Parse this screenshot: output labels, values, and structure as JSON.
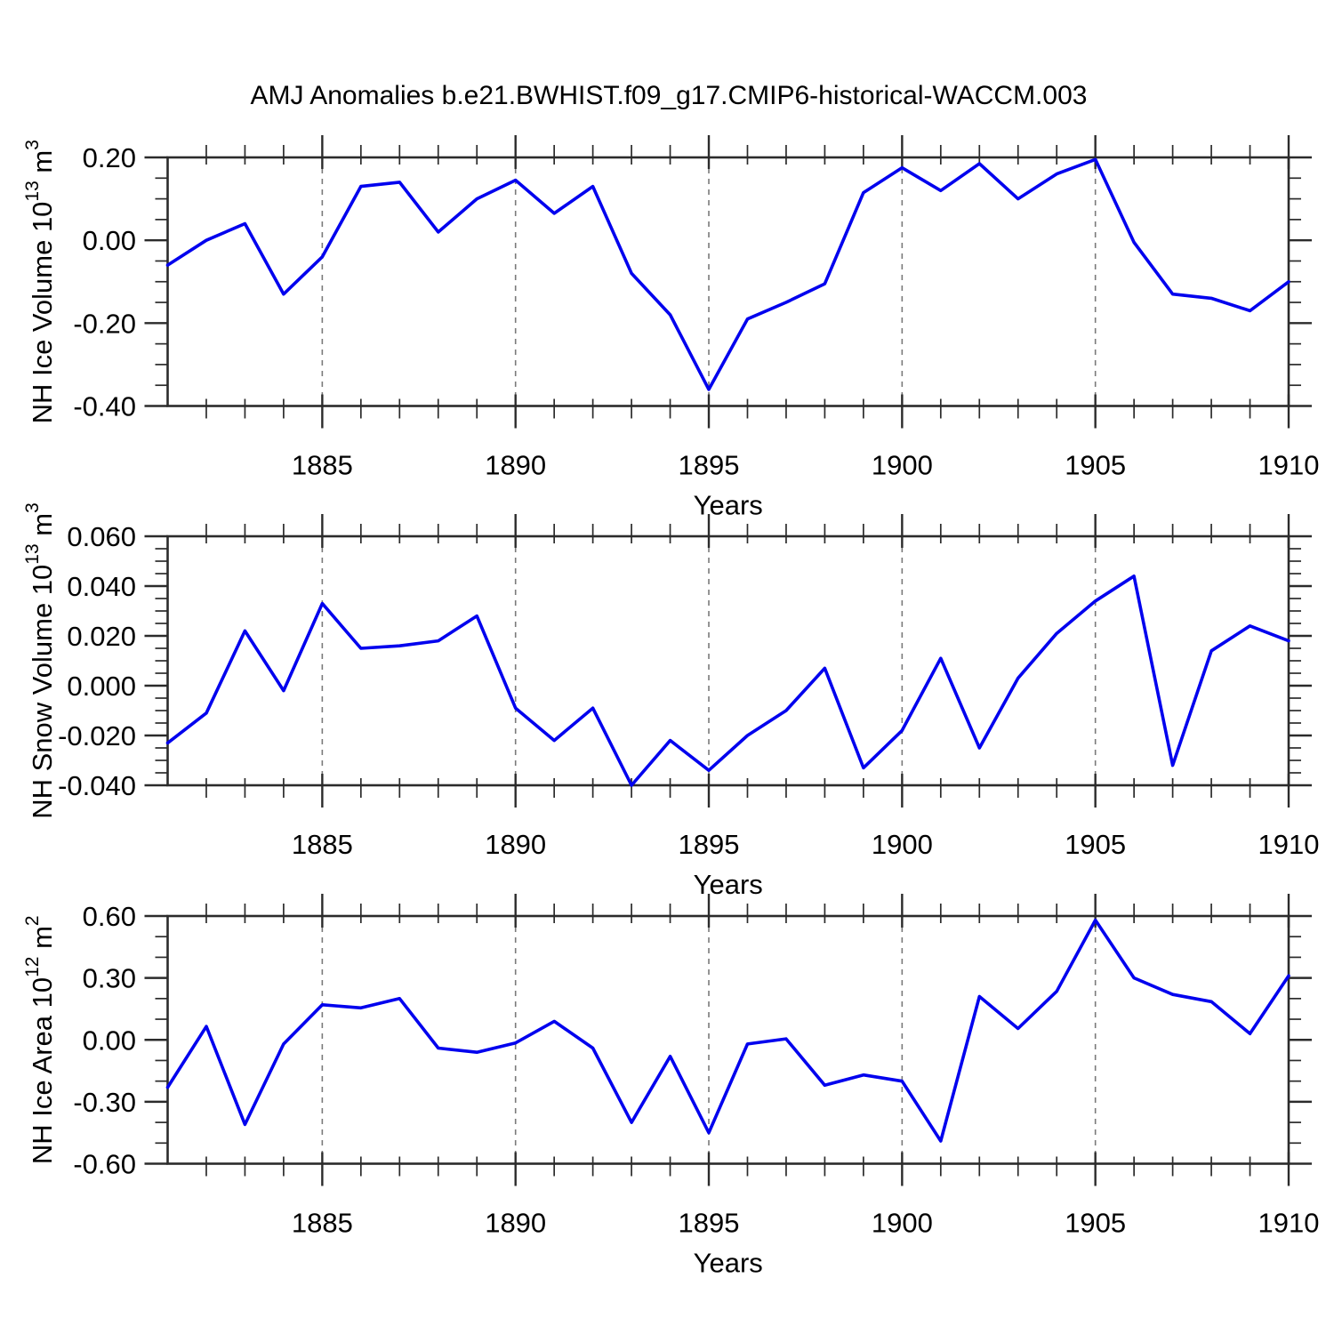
{
  "title": "AMJ Anomalies b.e21.BWHIST.f09_g17.CMIP6-historical-WACCM.003",
  "colors": {
    "series_line": "#0000ee",
    "grid_dashed": "#7a7a7a",
    "axis_frame": "#2b2b2b",
    "text": "#000000"
  },
  "x_axis": {
    "label": "Years",
    "start_year": 1881,
    "end_year": 1910,
    "major_tick_labels": [
      "1885",
      "1890",
      "1895",
      "1900",
      "1905",
      "1910"
    ],
    "major_tick_values": [
      1885,
      1890,
      1895,
      1900,
      1905,
      1910
    ],
    "minor_step_years": 1,
    "dashed_gridlines_at": [
      1885,
      1890,
      1895,
      1900,
      1905
    ]
  },
  "chart_data": [
    {
      "type": "line",
      "name": "nh-ice-volume",
      "ylabel_text": "NH Ice Volume 10^13 m^3",
      "ylabel_parts": {
        "base": "NH Ice Volume 10",
        "power": "13",
        "unit": " m",
        "unit_power": "3"
      },
      "xlabel": "Years",
      "ylim": [
        -0.4,
        0.2
      ],
      "y_ticks": [
        {
          "value": 0.2,
          "label": "0.20"
        },
        {
          "value": 0.0,
          "label": "0.00"
        },
        {
          "value": -0.2,
          "label": "-0.20"
        },
        {
          "value": -0.4,
          "label": "-0.40"
        }
      ],
      "y_minor_step": 0.05,
      "x": [
        1881,
        1882,
        1883,
        1884,
        1885,
        1886,
        1887,
        1888,
        1889,
        1890,
        1891,
        1892,
        1893,
        1894,
        1895,
        1896,
        1897,
        1898,
        1899,
        1900,
        1901,
        1902,
        1903,
        1904,
        1905,
        1906,
        1907,
        1908,
        1909,
        1910
      ],
      "values": [
        -0.06,
        0.0,
        0.04,
        -0.13,
        -0.04,
        0.13,
        0.14,
        0.02,
        0.1,
        0.145,
        0.065,
        0.13,
        -0.08,
        -0.18,
        -0.36,
        -0.19,
        -0.15,
        -0.105,
        0.115,
        0.175,
        0.12,
        0.185,
        0.1,
        0.16,
        0.195,
        -0.005,
        -0.13,
        -0.14,
        -0.17,
        -0.1
      ]
    },
    {
      "type": "line",
      "name": "nh-snow-volume",
      "ylabel_text": "NH Snow Volume 10^13 m^3",
      "ylabel_parts": {
        "base": "NH Snow Volume 10",
        "power": "13",
        "unit": " m",
        "unit_power": "3"
      },
      "xlabel": "Years",
      "ylim": [
        -0.04,
        0.06
      ],
      "y_ticks": [
        {
          "value": 0.06,
          "label": "0.060"
        },
        {
          "value": 0.04,
          "label": "0.040"
        },
        {
          "value": 0.02,
          "label": "0.020"
        },
        {
          "value": 0.0,
          "label": "0.000"
        },
        {
          "value": -0.02,
          "label": "-0.020"
        },
        {
          "value": -0.04,
          "label": "-0.040"
        }
      ],
      "y_minor_step": 0.005,
      "x": [
        1881,
        1882,
        1883,
        1884,
        1885,
        1886,
        1887,
        1888,
        1889,
        1890,
        1891,
        1892,
        1893,
        1894,
        1895,
        1896,
        1897,
        1898,
        1899,
        1900,
        1901,
        1902,
        1903,
        1904,
        1905,
        1906,
        1907,
        1908,
        1909,
        1910
      ],
      "values": [
        -0.023,
        -0.011,
        0.022,
        -0.002,
        0.033,
        0.015,
        0.016,
        0.018,
        0.028,
        -0.009,
        -0.022,
        -0.009,
        -0.04,
        -0.022,
        -0.034,
        -0.02,
        -0.01,
        0.007,
        -0.033,
        -0.018,
        0.011,
        -0.025,
        0.003,
        0.021,
        0.034,
        0.044,
        -0.032,
        0.014,
        0.024,
        0.018
      ]
    },
    {
      "type": "line",
      "name": "nh-ice-area",
      "ylabel_text": "NH Ice Area 10^12 m^2",
      "ylabel_parts": {
        "base": "NH Ice Area 10",
        "power": "12",
        "unit": " m",
        "unit_power": "2"
      },
      "xlabel": "Years",
      "ylim": [
        -0.6,
        0.6
      ],
      "y_ticks": [
        {
          "value": 0.6,
          "label": "0.60"
        },
        {
          "value": 0.3,
          "label": "0.30"
        },
        {
          "value": 0.0,
          "label": "0.00"
        },
        {
          "value": -0.3,
          "label": "-0.30"
        },
        {
          "value": -0.6,
          "label": "-0.60"
        }
      ],
      "y_minor_step": 0.1,
      "x": [
        1881,
        1882,
        1883,
        1884,
        1885,
        1886,
        1887,
        1888,
        1889,
        1890,
        1891,
        1892,
        1893,
        1894,
        1895,
        1896,
        1897,
        1898,
        1899,
        1900,
        1901,
        1902,
        1903,
        1904,
        1905,
        1906,
        1907,
        1908,
        1909,
        1910
      ],
      "values": [
        -0.23,
        0.065,
        -0.41,
        -0.02,
        0.17,
        0.155,
        0.2,
        -0.04,
        -0.06,
        -0.015,
        0.09,
        -0.04,
        -0.4,
        -0.08,
        -0.45,
        -0.02,
        0.005,
        -0.22,
        -0.17,
        -0.2,
        -0.49,
        0.21,
        0.055,
        0.235,
        0.58,
        0.3,
        0.22,
        0.185,
        0.03,
        0.31
      ]
    }
  ]
}
